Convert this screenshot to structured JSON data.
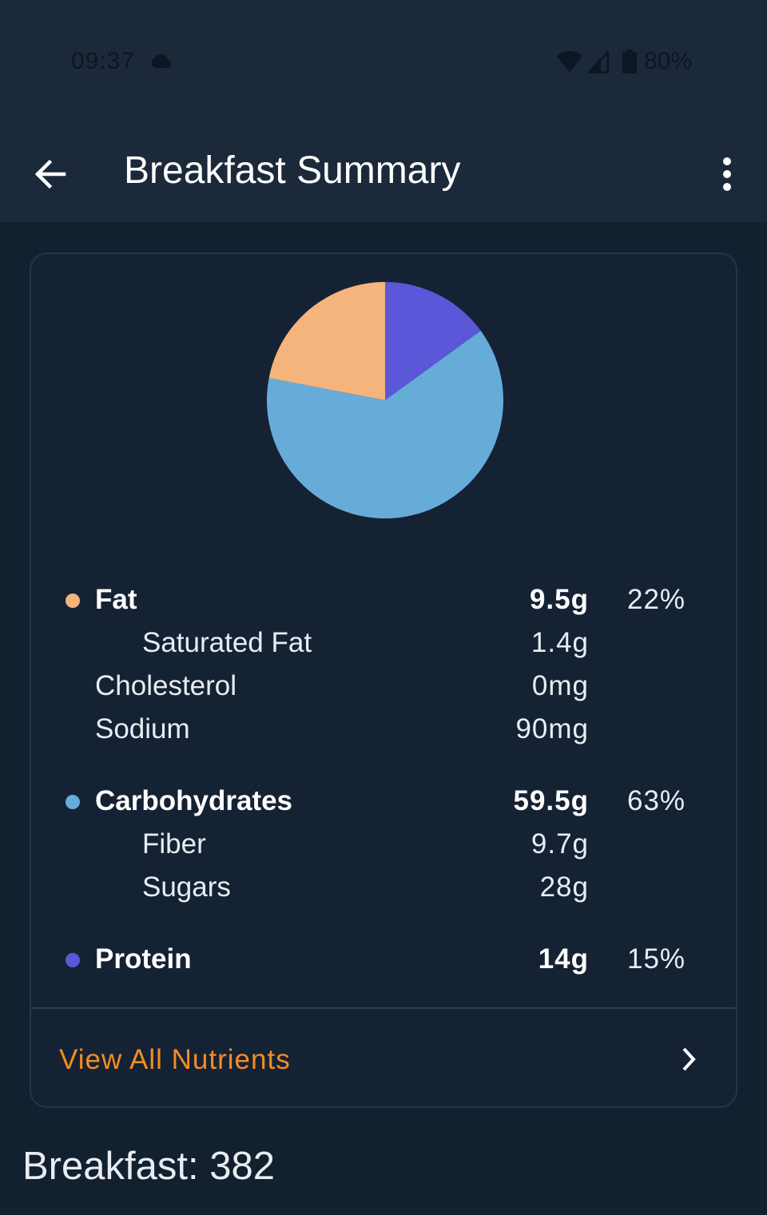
{
  "status_bar": {
    "time": "09:37",
    "battery": "80%",
    "icons": [
      "cloud-icon",
      "wifi-icon",
      "signal-icon",
      "battery-icon"
    ]
  },
  "app_bar": {
    "title": "Breakfast Summary",
    "back_icon": "arrow-left-icon",
    "more_icon": "more-vertical-icon"
  },
  "colors": {
    "fat": "#f5b47c",
    "carbohydrates": "#67acd9",
    "protein": "#5b57d8",
    "accent": "#f28d22"
  },
  "chart_data": {
    "type": "pie",
    "slices": [
      {
        "label": "Protein",
        "value": 15,
        "color": "#5b57d8"
      },
      {
        "label": "Carbohydrates",
        "value": 63,
        "color": "#67acd9"
      },
      {
        "label": "Fat",
        "value": 22,
        "color": "#f5b47c"
      }
    ]
  },
  "nutrients": {
    "fat": {
      "label": "Fat",
      "amount": "9.5g",
      "percent": "22%"
    },
    "saturated_fat": {
      "label": "Saturated Fat",
      "amount": "1.4g"
    },
    "cholesterol": {
      "label": "Cholesterol",
      "amount": "0mg"
    },
    "sodium": {
      "label": "Sodium",
      "amount": "90mg"
    },
    "carbohydrates": {
      "label": "Carbohydrates",
      "amount": "59.5g",
      "percent": "63%"
    },
    "fiber": {
      "label": "Fiber",
      "amount": "9.7g"
    },
    "sugars": {
      "label": "Sugars",
      "amount": "28g"
    },
    "protein": {
      "label": "Protein",
      "amount": "14g",
      "percent": "15%"
    }
  },
  "view_all": {
    "label": "View All Nutrients"
  },
  "footer": {
    "total": "Breakfast: 382"
  }
}
